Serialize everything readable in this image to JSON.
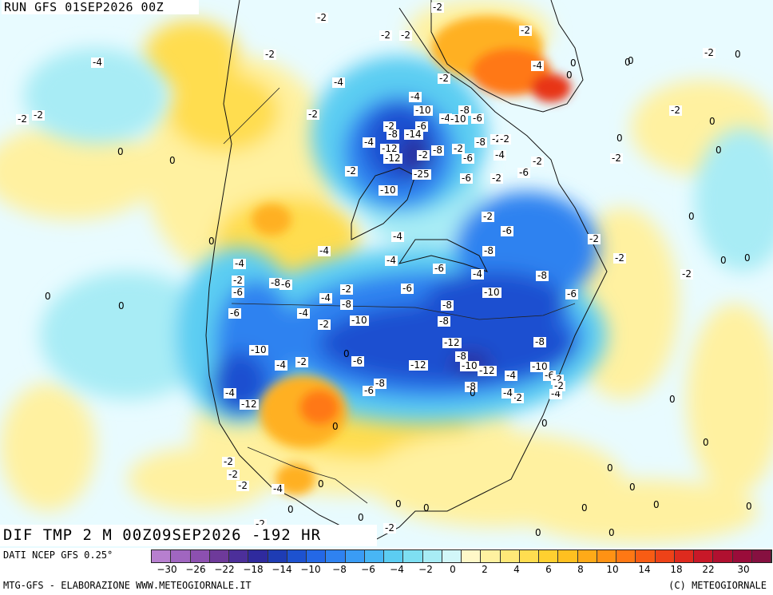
{
  "header": {
    "run_title": "RUN GFS 01SEP2026 00Z",
    "field_title": "DIF TMP 2 M 00Z09SEP2026 -192 HR"
  },
  "footer": {
    "data_credit": "DATI NCEP GFS 0.25°",
    "source_credit": "MTG-GFS - ELABORAZIONE WWW.METEOGIORNALE.IT",
    "copyright": "(C) METEOGIORNALE"
  },
  "legend": {
    "colors": [
      "#b77fcf",
      "#a066c0",
      "#8c50b0",
      "#6e3a9a",
      "#4c2f9a",
      "#2f2a9e",
      "#1e3cb4",
      "#1d52d0",
      "#2468e6",
      "#2f82f0",
      "#3a9cf5",
      "#48b6f5",
      "#5ccdf2",
      "#7edff2",
      "#a8ecf5",
      "#d2f7f9",
      "#fff8c8",
      "#fff1a0",
      "#ffe878",
      "#ffdd50",
      "#ffd030",
      "#ffc020",
      "#ffaa18",
      "#ff9214",
      "#ff7814",
      "#f85c14",
      "#ee4218",
      "#de2a1e",
      "#c81828",
      "#b01030",
      "#9a0c3a",
      "#861040"
    ],
    "ticks": [
      "−30",
      "−26",
      "−22",
      "−18",
      "−14",
      "−10",
      "−8",
      "−6",
      "−4",
      "−2",
      "0",
      "2",
      "4",
      "6",
      "8",
      "10",
      "14",
      "18",
      "22",
      "30"
    ]
  },
  "map": {
    "field": "temperature difference",
    "colors": {
      "water": "#e8fbff",
      "cold_extreme": "#2a2e9c",
      "cold_strong": "#1d4fd0",
      "cold_moderate": "#2f82f0",
      "cold_light": "#5ccdf2",
      "cool": "#a8ecf5",
      "neutral": "#d2f7f9",
      "warm_light": "#fff1a0",
      "warm": "#ffdd50",
      "warm_moderate": "#ffb020",
      "warm_strong": "#ff7814",
      "hot": "#e83418"
    },
    "contour_labels": [
      {
        "text": "-2"
      },
      {
        "text": "-2"
      },
      {
        "text": "-2"
      },
      {
        "text": "-2"
      },
      {
        "text": "-4"
      },
      {
        "text": "-2"
      },
      {
        "text": "-2"
      },
      {
        "text": "-2"
      },
      {
        "text": "-4"
      },
      {
        "text": "0"
      },
      {
        "text": "0"
      },
      {
        "text": "-2"
      },
      {
        "text": "-2"
      },
      {
        "text": "-2"
      },
      {
        "text": "-4"
      },
      {
        "text": "-2"
      },
      {
        "text": "-2"
      },
      {
        "text": "-4"
      },
      {
        "text": "-8"
      },
      {
        "text": "-10"
      },
      {
        "text": "-4"
      },
      {
        "text": "-10"
      },
      {
        "text": "-6"
      },
      {
        "text": "-2"
      },
      {
        "text": "-8"
      },
      {
        "text": "-6"
      },
      {
        "text": "-14"
      },
      {
        "text": "-8"
      },
      {
        "text": "-2"
      },
      {
        "text": "-4"
      },
      {
        "text": "-12"
      },
      {
        "text": "-8"
      },
      {
        "text": "-2"
      },
      {
        "text": "-6"
      },
      {
        "text": "-4"
      },
      {
        "text": "-2"
      },
      {
        "text": "-12"
      },
      {
        "text": "-2"
      },
      {
        "text": "-25"
      },
      {
        "text": "-6"
      },
      {
        "text": "-2"
      },
      {
        "text": "-6"
      },
      {
        "text": "-2"
      },
      {
        "text": "-10"
      },
      {
        "text": "0"
      },
      {
        "text": "0"
      },
      {
        "text": "0"
      },
      {
        "text": "0"
      },
      {
        "text": "0"
      },
      {
        "text": "-2"
      },
      {
        "text": "-2"
      },
      {
        "text": "-2"
      },
      {
        "text": "-6"
      },
      {
        "text": "-4"
      },
      {
        "text": "-2"
      },
      {
        "text": "-4"
      },
      {
        "text": "-4"
      },
      {
        "text": "-8"
      },
      {
        "text": "-2"
      },
      {
        "text": "0"
      },
      {
        "text": "-4"
      },
      {
        "text": "-6"
      },
      {
        "text": "-4"
      },
      {
        "text": "-8"
      },
      {
        "text": "-2"
      },
      {
        "text": "-2"
      },
      {
        "text": "-8"
      },
      {
        "text": "-2"
      },
      {
        "text": "-6"
      },
      {
        "text": "-4"
      },
      {
        "text": "-8"
      },
      {
        "text": "-6"
      },
      {
        "text": "-10"
      },
      {
        "text": "-6"
      },
      {
        "text": "-6"
      },
      {
        "text": "-8"
      },
      {
        "text": "-6"
      },
      {
        "text": "-4"
      },
      {
        "text": "-2"
      },
      {
        "text": "-10"
      },
      {
        "text": "-8"
      },
      {
        "text": "-8"
      },
      {
        "text": "-12"
      },
      {
        "text": "-4"
      },
      {
        "text": "-2"
      },
      {
        "text": "0"
      },
      {
        "text": "-6"
      },
      {
        "text": "-12"
      },
      {
        "text": "-8"
      },
      {
        "text": "-10"
      },
      {
        "text": "-12"
      },
      {
        "text": "-4"
      },
      {
        "text": "-8"
      },
      {
        "text": "-10"
      },
      {
        "text": "-6"
      },
      {
        "text": "-6"
      },
      {
        "text": "-8"
      },
      {
        "text": "-2"
      },
      {
        "text": "-10"
      },
      {
        "text": "-2"
      },
      {
        "text": "-12"
      },
      {
        "text": "-4"
      },
      {
        "text": "0"
      },
      {
        "text": "0"
      },
      {
        "text": "-4"
      },
      {
        "text": "-2"
      },
      {
        "text": "-2"
      },
      {
        "text": "-2"
      },
      {
        "text": "-4"
      },
      {
        "text": "0"
      },
      {
        "text": "-2"
      },
      {
        "text": "0"
      },
      {
        "text": "0"
      },
      {
        "text": "-2"
      },
      {
        "text": "0"
      },
      {
        "text": "0"
      },
      {
        "text": "0"
      },
      {
        "text": "0"
      },
      {
        "text": "0"
      },
      {
        "text": "0"
      },
      {
        "text": "0"
      },
      {
        "text": "0"
      },
      {
        "text": "0"
      },
      {
        "text": "0"
      },
      {
        "text": "0"
      },
      {
        "text": "0"
      },
      {
        "text": "0"
      },
      {
        "text": "0"
      },
      {
        "text": "0"
      },
      {
        "text": "0"
      },
      {
        "text": "-4"
      },
      {
        "text": "-2"
      },
      {
        "text": "0"
      },
      {
        "text": "0"
      },
      {
        "text": "0"
      },
      {
        "text": "0"
      }
    ]
  }
}
